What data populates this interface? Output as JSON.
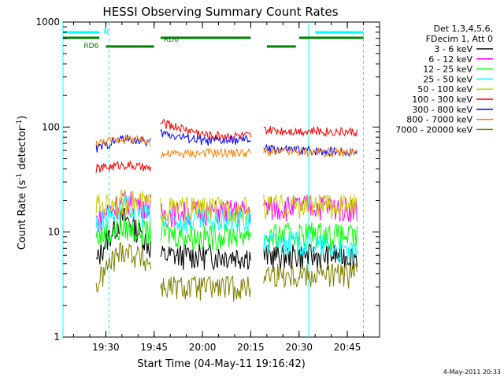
{
  "chart_data": {
    "type": "line",
    "title": "HESSI Observing Summary Count Rates",
    "xlabel": "Start Time (04-May-11 19:16:42)",
    "ylabel_main": "Count Rate (s",
    "ylabel_sup1": "-1",
    "ylabel_mid": " detector",
    "ylabel_sup2": "-1",
    "ylabel_end": ")",
    "y_scale": "log",
    "ylim": [
      1,
      1000
    ],
    "xlim": [
      "19:16:42",
      "20:55:00"
    ],
    "x_ticks": [
      "19:30",
      "19:45",
      "20:00",
      "20:15",
      "20:30",
      "20:45"
    ],
    "y_ticks": [
      "1",
      "10",
      "100",
      "1000"
    ],
    "legend_header": [
      "Det 1,3,4,5,6,",
      "FDecim 1, Att 0"
    ],
    "footer_date": "4-May-2011 20:33",
    "segments": [
      {
        "start": "19:27",
        "end": "19:44"
      },
      {
        "start": "19:47",
        "end": "20:15"
      },
      {
        "start": "20:19",
        "end": "20:48"
      }
    ],
    "series": [
      {
        "name": "3 - 6 keV",
        "color": "#000000",
        "values": [
          [
            5,
            14,
            7
          ],
          [
            6,
            6,
            6
          ],
          [
            6,
            6,
            6
          ]
        ]
      },
      {
        "name": "6 - 12 keV",
        "color": "#ff00ff",
        "values": [
          [
            13,
            20,
            18
          ],
          [
            15,
            16,
            16
          ],
          [
            17,
            18,
            17
          ]
        ]
      },
      {
        "name": "12 - 25 keV",
        "color": "#00ff00",
        "values": [
          [
            9,
            11,
            10
          ],
          [
            10,
            9,
            10
          ],
          [
            9,
            10,
            9
          ]
        ]
      },
      {
        "name": "25 - 50 keV",
        "color": "#00ffff",
        "values": [
          [
            12,
            18,
            14
          ],
          [
            13,
            13,
            13
          ],
          [
            8,
            8,
            6
          ]
        ]
      },
      {
        "name": "50 - 100 keV",
        "color": "#cccc00",
        "values": [
          [
            18,
            20,
            19
          ],
          [
            17,
            17,
            17
          ],
          [
            18,
            18,
            18
          ]
        ]
      },
      {
        "name": "100 - 300 keV",
        "color": "#ff0000",
        "values": [
          [
            40,
            44,
            40
          ],
          [
            110,
            84,
            82
          ],
          [
            93,
            92,
            90
          ]
        ]
      },
      {
        "name": "300 - 800 keV",
        "color": "#0000ff",
        "values": [
          [
            62,
            78,
            72
          ],
          [
            88,
            73,
            76
          ],
          [
            62,
            60,
            58
          ]
        ]
      },
      {
        "name": "800 - 7000 keV",
        "color": "#ff8000",
        "values": [
          [
            70,
            78,
            72
          ],
          [
            55,
            57,
            57
          ],
          [
            58,
            58,
            57
          ]
        ]
      },
      {
        "name": "7000 - 20000 keV",
        "color": "#808000",
        "values": [
          [
            3,
            7,
            5
          ],
          [
            3,
            3,
            3
          ],
          [
            4,
            4,
            4
          ]
        ]
      }
    ],
    "flags": [
      {
        "name": "N",
        "label": "N",
        "color": "#00ffff",
        "level": "top",
        "spans": [
          [
            "19:16:42",
            "19:28"
          ],
          [
            "20:35",
            "20:50"
          ]
        ]
      },
      {
        "name": "RD0",
        "label": "RD0",
        "color": "#007f00",
        "level": "middle",
        "spans": [
          [
            "19:16:42",
            "19:28"
          ],
          [
            "19:47",
            "20:15"
          ],
          [
            "20:30",
            "20:50"
          ]
        ]
      },
      {
        "name": "RD6",
        "label": "RD6",
        "color": "#007f00",
        "level": "lower",
        "spans": [
          [
            "19:30",
            "19:45"
          ],
          [
            "20:20",
            "20:29"
          ]
        ]
      }
    ],
    "vertical_markers": [
      {
        "time": "19:16:42",
        "color": "#00ffff",
        "style": "solid"
      },
      {
        "time": "19:31",
        "color": "#00ffff",
        "style": "dashed"
      },
      {
        "time": "20:33",
        "color": "#00ffff",
        "style": "solid"
      },
      {
        "time": "20:50",
        "color": "#00ffff",
        "style": "dashed"
      }
    ],
    "grid": false,
    "legend_position": "right"
  }
}
